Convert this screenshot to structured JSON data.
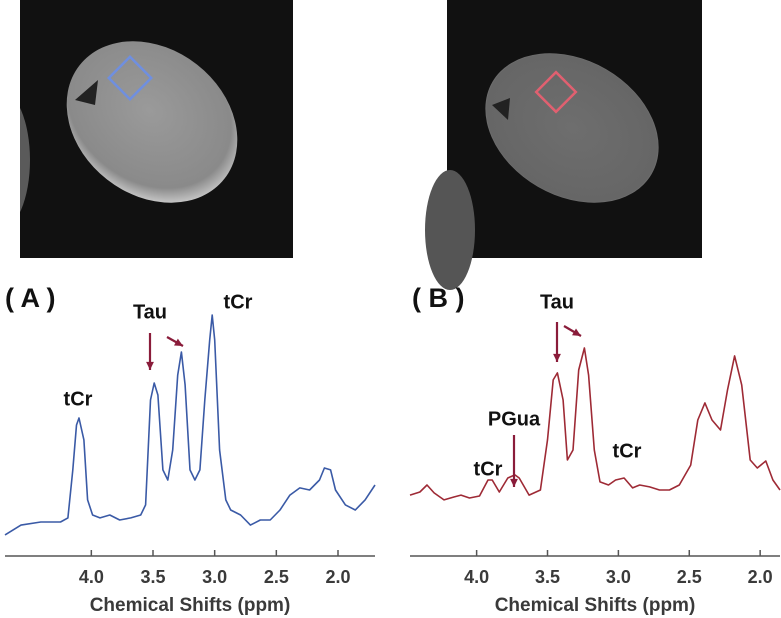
{
  "chart_data": [
    {
      "type": "line",
      "panel_label": "( A )",
      "xlabel": "Chemical Shifts (ppm)",
      "xlim": [
        4.7,
        1.7
      ],
      "ylim": [
        0,
        100
      ],
      "xticks": [
        {
          "value": 4,
          "label": "4.0"
        },
        3.5,
        {
          "value": 3,
          "label": "3.0"
        },
        2.5,
        {
          "value": 2,
          "label": "2.0"
        }
      ],
      "annotations": [
        "tCr",
        "Tau",
        "tCr"
      ],
      "x": [
        4.7,
        4.57,
        4.41,
        4.25,
        4.19,
        4.15,
        4.12,
        4.1,
        4.06,
        4.03,
        3.99,
        3.93,
        3.85,
        3.77,
        3.68,
        3.6,
        3.56,
        3.52,
        3.49,
        3.46,
        3.42,
        3.38,
        3.34,
        3.3,
        3.27,
        3.24,
        3.2,
        3.16,
        3.12,
        3.08,
        3.04,
        3.02,
        3.0,
        2.96,
        2.91,
        2.87,
        2.79,
        2.71,
        2.63,
        2.55,
        2.47,
        2.39,
        2.31,
        2.23,
        2.15,
        2.11,
        2.06,
        2.02,
        1.94,
        1.86,
        1.78,
        1.7
      ],
      "series": [
        {
          "color": "#3a5aa6",
          "values": [
            4.2,
            8.3,
            9.6,
            9.6,
            11.3,
            31.3,
            50,
            52.9,
            43.8,
            18.8,
            12.5,
            11.3,
            12.5,
            10.4,
            11.3,
            12.5,
            16.7,
            60.4,
            67.5,
            62.5,
            31.3,
            27.1,
            39.6,
            70.8,
            80.4,
            66.7,
            31.3,
            27.1,
            31.3,
            60.4,
            85.4,
            95.8,
            85.4,
            39.6,
            18.8,
            14.6,
            12.5,
            8.3,
            10.4,
            10.4,
            14.6,
            20.8,
            23.8,
            22.9,
            27.1,
            32.1,
            31.3,
            22.9,
            16.7,
            14.6,
            18.8,
            25
          ]
        }
      ]
    },
    {
      "type": "line",
      "panel_label": "( B )",
      "xlabel": "Chemical Shifts (ppm)",
      "xlim": [
        4.47,
        1.86
      ],
      "ylim": [
        0,
        100
      ],
      "xticks": [
        {
          "value": 4,
          "label": "4.0"
        },
        3.5,
        {
          "value": 3,
          "label": "3.0"
        },
        2.5,
        {
          "value": 2,
          "label": "2.0"
        }
      ],
      "annotations": [
        "PGua",
        "tCr",
        "Tau",
        "tCr"
      ],
      "x": [
        4.47,
        4.4,
        4.35,
        4.3,
        4.23,
        4.16,
        4.11,
        4.05,
        3.98,
        3.92,
        3.89,
        3.84,
        3.78,
        3.73,
        3.7,
        3.63,
        3.55,
        3.5,
        3.46,
        3.43,
        3.39,
        3.36,
        3.32,
        3.28,
        3.24,
        3.21,
        3.17,
        3.13,
        3.07,
        3.02,
        2.96,
        2.9,
        2.85,
        2.78,
        2.71,
        2.64,
        2.57,
        2.49,
        2.44,
        2.39,
        2.34,
        2.28,
        2.23,
        2.18,
        2.13,
        2.07,
        2.02,
        1.96,
        1.91,
        1.86
      ],
      "series": [
        {
          "color": "#9e2a35",
          "values": [
            20.8,
            22.1,
            25,
            21.7,
            18.8,
            20,
            20.8,
            19.6,
            20.4,
            27.1,
            27.1,
            22.1,
            27.9,
            29.2,
            27.9,
            20.8,
            22.9,
            43.8,
            68.8,
            71.7,
            60.4,
            35.4,
            39.6,
            72.9,
            82.1,
            70.8,
            39.6,
            26.3,
            25,
            27.1,
            27.9,
            23.8,
            25,
            24.2,
            22.9,
            22.9,
            25,
            33.3,
            52.1,
            59.2,
            52.1,
            47.9,
            64.6,
            78.8,
            66.7,
            35.4,
            32.1,
            35,
            27.1,
            22.9
          ]
        }
      ]
    }
  ]
}
